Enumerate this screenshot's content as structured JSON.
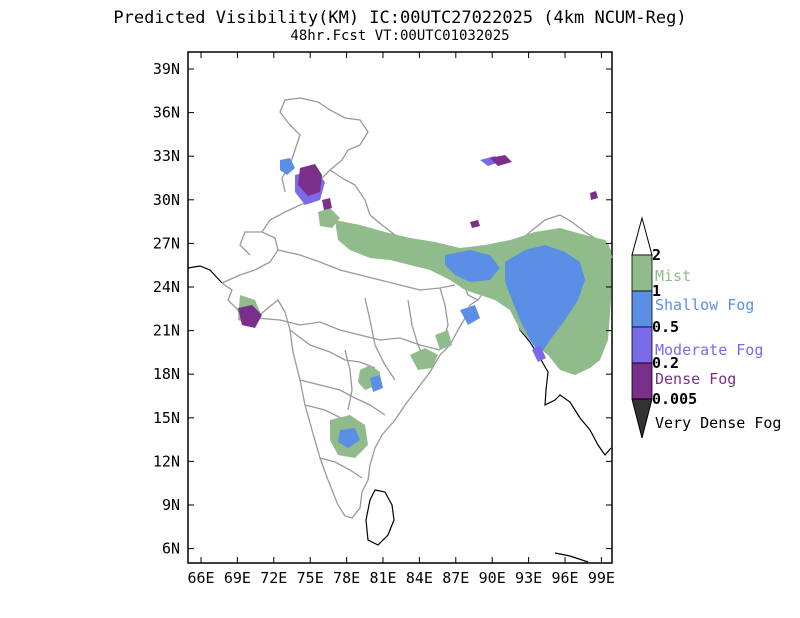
{
  "title": {
    "line1": "Predicted Visibility(KM) IC:00UTC27022025 (4km NCUM-Reg)",
    "line2": "48hr.Fcst VT:00UTC01032025"
  },
  "axes": {
    "lat_ticks": [
      "39N",
      "36N",
      "33N",
      "30N",
      "27N",
      "24N",
      "21N",
      "18N",
      "15N",
      "12N",
      "9N",
      "6N"
    ],
    "lon_ticks": [
      "66E",
      "69E",
      "72E",
      "75E",
      "78E",
      "81E",
      "84E",
      "87E",
      "90E",
      "93E",
      "96E",
      "99E"
    ]
  },
  "legend": {
    "levels": [
      "2",
      "1",
      "0.5",
      "0.2",
      "0.005"
    ],
    "categories": [
      {
        "name": "Mist",
        "color": "#8fbc8a"
      },
      {
        "name": "Shallow Fog",
        "color": "#5b8fe6"
      },
      {
        "name": "Moderate Fog",
        "color": "#7b6ae8"
      },
      {
        "name": "Dense Fog",
        "color": "#7a2f8a"
      },
      {
        "name": "Very Dense Fog",
        "color": "#333333"
      }
    ]
  },
  "colors": {
    "boundary": "#999999",
    "coast": "#000000",
    "mist": "#8fbc8a",
    "shallow": "#5b8fe6",
    "moderate": "#7b6ae8",
    "dense": "#7a2f8a"
  }
}
